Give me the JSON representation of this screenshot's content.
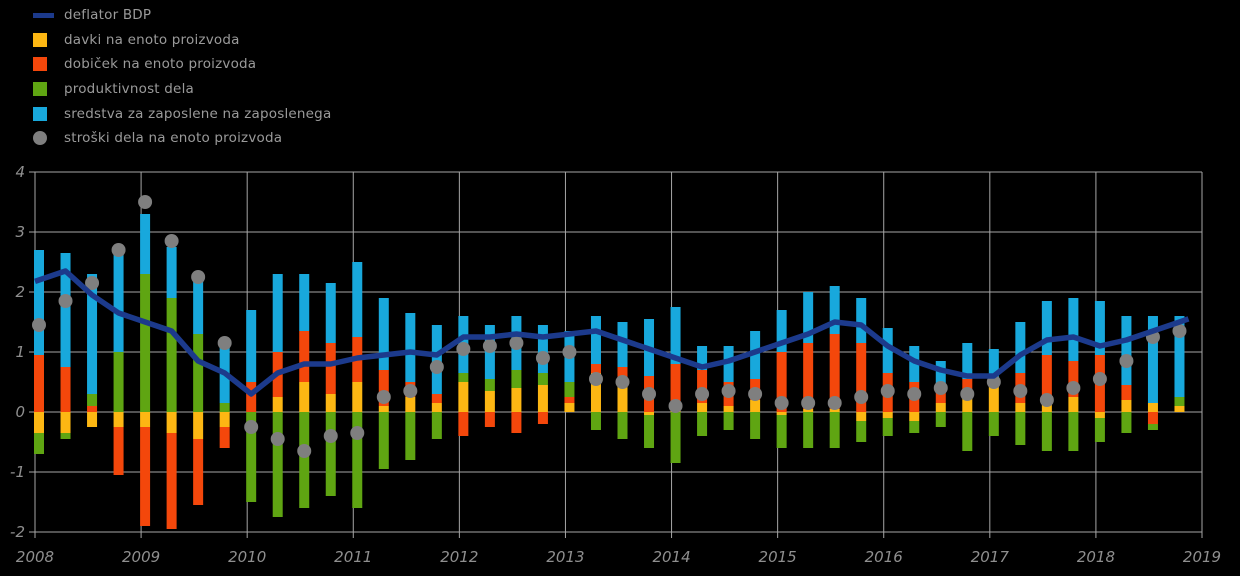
{
  "styles": {
    "background": "#000000",
    "grid_color": "#a6a6a6",
    "label_color": "#8f8f8f",
    "legend_text_color": "#9a9a9a"
  },
  "legend": [
    {
      "label": "deflator BDP",
      "swatch": "line",
      "color": "#1c3a8c"
    },
    {
      "label": "davki na enoto proizvoda",
      "swatch": "square",
      "color": "#fdb713"
    },
    {
      "label": "dobiček na enoto proizvoda",
      "swatch": "square",
      "color": "#f4470b"
    },
    {
      "label": "produktivnost dela",
      "swatch": "square",
      "color": "#5fa512"
    },
    {
      "label": "sredstva za zaposlene na zaposlenega",
      "swatch": "square",
      "color": "#18a8dc"
    },
    {
      "label": "stroški dela na enoto proizvoda",
      "swatch": "circle",
      "color": "#7f7f7f"
    }
  ],
  "chart_data": {
    "type": "bar",
    "subtype": "stacked-bars-with-line-and-points",
    "title": "",
    "xlabel": "",
    "ylabel": "",
    "ylim": [
      -2,
      4
    ],
    "y_ticks": [
      4,
      3,
      2,
      1,
      0,
      -1,
      -2
    ],
    "grid": true,
    "legend_position": "top-left",
    "x_axis_years": [
      "2008",
      "2009",
      "2010",
      "2011",
      "2012",
      "2013",
      "2014",
      "2015",
      "2016",
      "2017",
      "2018",
      "2019"
    ],
    "quarters": [
      "2008Q1",
      "2008Q2",
      "2008Q3",
      "2008Q4",
      "2009Q1",
      "2009Q2",
      "2009Q3",
      "2009Q4",
      "2010Q1",
      "2010Q2",
      "2010Q3",
      "2010Q4",
      "2011Q1",
      "2011Q2",
      "2011Q3",
      "2011Q4",
      "2012Q1",
      "2012Q2",
      "2012Q3",
      "2012Q4",
      "2013Q1",
      "2013Q2",
      "2013Q3",
      "2013Q4",
      "2014Q1",
      "2014Q2",
      "2014Q3",
      "2014Q4",
      "2015Q1",
      "2015Q2",
      "2015Q3",
      "2015Q4",
      "2016Q1",
      "2016Q2",
      "2016Q3",
      "2016Q4",
      "2017Q1",
      "2017Q2",
      "2017Q3",
      "2017Q4",
      "2018Q1",
      "2018Q2",
      "2018Q3",
      "2018Q4"
    ],
    "series": [
      {
        "key": "davki",
        "name": "davki na enoto proizvoda",
        "kind": "bar",
        "color": "#fdb713",
        "values": [
          -0.35,
          -0.35,
          -0.25,
          -0.25,
          -0.25,
          -0.35,
          -0.45,
          -0.25,
          0.0,
          0.25,
          0.5,
          0.3,
          0.5,
          0.1,
          0.25,
          0.15,
          0.5,
          0.35,
          0.4,
          0.45,
          0.15,
          0.65,
          0.5,
          -0.05,
          0.1,
          0.15,
          0.1,
          0.2,
          -0.05,
          0.05,
          0.05,
          -0.15,
          -0.1,
          -0.15,
          0.15,
          0.25,
          0.45,
          0.15,
          0.15,
          0.25,
          -0.1,
          0.2,
          0.15,
          0.1
        ]
      },
      {
        "key": "dobicek",
        "name": "dobiček na enoto proizvoda",
        "kind": "bar",
        "color": "#f4470b",
        "values": [
          0.95,
          0.75,
          0.1,
          -0.8,
          -1.65,
          -1.6,
          -1.1,
          -0.35,
          0.5,
          0.75,
          0.85,
          0.85,
          0.75,
          0.6,
          0.25,
          0.15,
          -0.4,
          -0.25,
          -0.35,
          -0.2,
          0.1,
          0.15,
          0.25,
          0.6,
          0.7,
          0.55,
          0.4,
          0.35,
          1.0,
          1.1,
          1.25,
          1.15,
          0.65,
          0.5,
          0.3,
          0.3,
          0.0,
          0.5,
          0.8,
          0.6,
          0.95,
          0.25,
          -0.2,
          0.0
        ]
      },
      {
        "key": "produktivnost",
        "name": "produktivnost dela",
        "kind": "bar",
        "color": "#5fa512",
        "values": [
          -0.35,
          -0.1,
          0.2,
          1.0,
          2.3,
          1.9,
          1.3,
          0.15,
          -1.5,
          -1.75,
          -1.6,
          -1.4,
          -1.6,
          -0.95,
          -0.8,
          -0.45,
          0.15,
          0.2,
          0.3,
          0.2,
          0.25,
          -0.3,
          -0.45,
          -0.55,
          -0.85,
          -0.4,
          -0.3,
          -0.45,
          -0.55,
          -0.6,
          -0.6,
          -0.35,
          -0.3,
          -0.2,
          -0.25,
          -0.65,
          -0.4,
          -0.55,
          -0.65,
          -0.65,
          -0.4,
          -0.35,
          -0.1,
          0.15
        ]
      },
      {
        "key": "sredstva",
        "name": "sredstva za zaposlene na zaposlenega",
        "kind": "bar",
        "color": "#18a8dc",
        "values": [
          1.75,
          1.9,
          2.0,
          1.65,
          1.0,
          0.85,
          1.0,
          0.95,
          1.2,
          1.3,
          0.95,
          1.0,
          1.25,
          1.2,
          1.15,
          1.15,
          0.95,
          0.9,
          0.9,
          0.8,
          0.85,
          0.8,
          0.75,
          0.95,
          0.95,
          0.4,
          0.6,
          0.8,
          0.7,
          0.85,
          0.8,
          0.75,
          0.75,
          0.6,
          0.4,
          0.6,
          0.6,
          0.85,
          0.9,
          1.05,
          0.9,
          1.15,
          1.45,
          1.35
        ]
      },
      {
        "key": "stroski",
        "name": "stroški dela na enoto proizvoda",
        "kind": "points",
        "color": "#7f7f7f",
        "values": [
          1.45,
          1.85,
          2.15,
          2.7,
          3.5,
          2.85,
          2.25,
          1.15,
          -0.25,
          -0.45,
          -0.65,
          -0.4,
          -0.35,
          0.25,
          0.35,
          0.75,
          1.05,
          1.1,
          1.15,
          0.9,
          1.0,
          0.55,
          0.5,
          0.3,
          0.1,
          0.3,
          0.35,
          0.3,
          0.15,
          0.15,
          0.15,
          0.25,
          0.35,
          0.3,
          0.4,
          0.3,
          0.5,
          0.35,
          0.2,
          0.4,
          0.55,
          0.85,
          1.25,
          1.35
        ]
      },
      {
        "key": "deflator",
        "name": "deflator BDP",
        "kind": "line",
        "color": "#1c3a8c",
        "values": [
          2.2,
          2.35,
          1.95,
          1.65,
          1.5,
          1.35,
          0.85,
          0.65,
          0.3,
          0.65,
          0.8,
          0.8,
          0.9,
          0.95,
          1.0,
          0.95,
          1.25,
          1.25,
          1.3,
          1.25,
          1.3,
          1.35,
          1.2,
          1.05,
          0.9,
          0.75,
          0.85,
          1.0,
          1.15,
          1.3,
          1.5,
          1.45,
          1.1,
          0.85,
          0.7,
          0.6,
          0.6,
          0.95,
          1.2,
          1.25,
          1.1,
          1.2,
          1.35,
          1.5
        ]
      }
    ]
  }
}
